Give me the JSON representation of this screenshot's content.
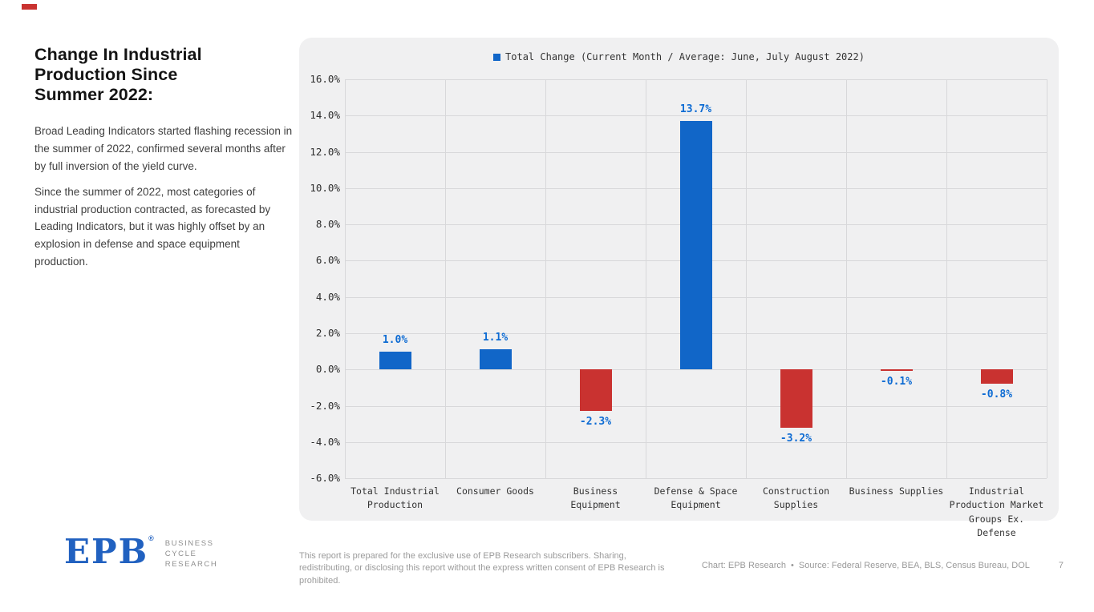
{
  "left_panel": {
    "title": "Change In Industrial Production Since Summer 2022:",
    "paragraph1": "Broad Leading Indicators started flashing recession in the summer of 2022, confirmed several months after by full inversion of the yield curve.",
    "paragraph2": "Since the summer of 2022, most categories of industrial production contracted, as forecasted by Leading Indicators, but it was highly offset by an explosion in defense and space equipment production."
  },
  "chart_data": {
    "type": "bar",
    "title": "",
    "legend": "Total Change (Current Month / Average: June, July August 2022)",
    "legend_position": "top",
    "categories": [
      "Total Industrial Production",
      "Consumer Goods",
      "Business Equipment",
      "Defense & Space Equipment",
      "Construction Supplies",
      "Business Supplies",
      "Industrial Production Market Groups Ex. Defense"
    ],
    "values": [
      1.0,
      1.1,
      -2.3,
      13.7,
      -3.2,
      -0.1,
      -0.8
    ],
    "value_labels": [
      "1.0%",
      "1.1%",
      "-2.3%",
      "13.7%",
      "-3.2%",
      "-0.1%",
      "-0.8%"
    ],
    "ylim": [
      -6,
      16
    ],
    "ytick_step": 2,
    "ytick_labels": [
      "16.0%",
      "14.0%",
      "12.0%",
      "10.0%",
      "8.0%",
      "6.0%",
      "4.0%",
      "2.0%",
      "0.0%",
      "-2.0%",
      "-4.0%",
      "-6.0%"
    ],
    "grid": true,
    "colors": {
      "positive_bar": "#1166c8",
      "negative_bar": "#c93230",
      "value_label": "#0d6bd3",
      "panel_background": "#f0f0f1",
      "gridline": "#d8d8da",
      "accent_dash": "#c93230"
    }
  },
  "footer": {
    "logo_text": "EPB",
    "logo_reg": "®",
    "org_line1": "BUSINESS",
    "org_line2": "CYCLE",
    "org_line3": "RESEARCH",
    "disclaimer": "This report is prepared for the exclusive use of EPB Research subscribers. Sharing, redistributing, or disclosing this report without the express written consent of EPB Research is prohibited.",
    "credits": "Chart: EPB Research",
    "credits_bullet": "•",
    "source": "Source: Federal Reserve, BEA, BLS, Census Bureau, DOL",
    "page_number": "7"
  }
}
